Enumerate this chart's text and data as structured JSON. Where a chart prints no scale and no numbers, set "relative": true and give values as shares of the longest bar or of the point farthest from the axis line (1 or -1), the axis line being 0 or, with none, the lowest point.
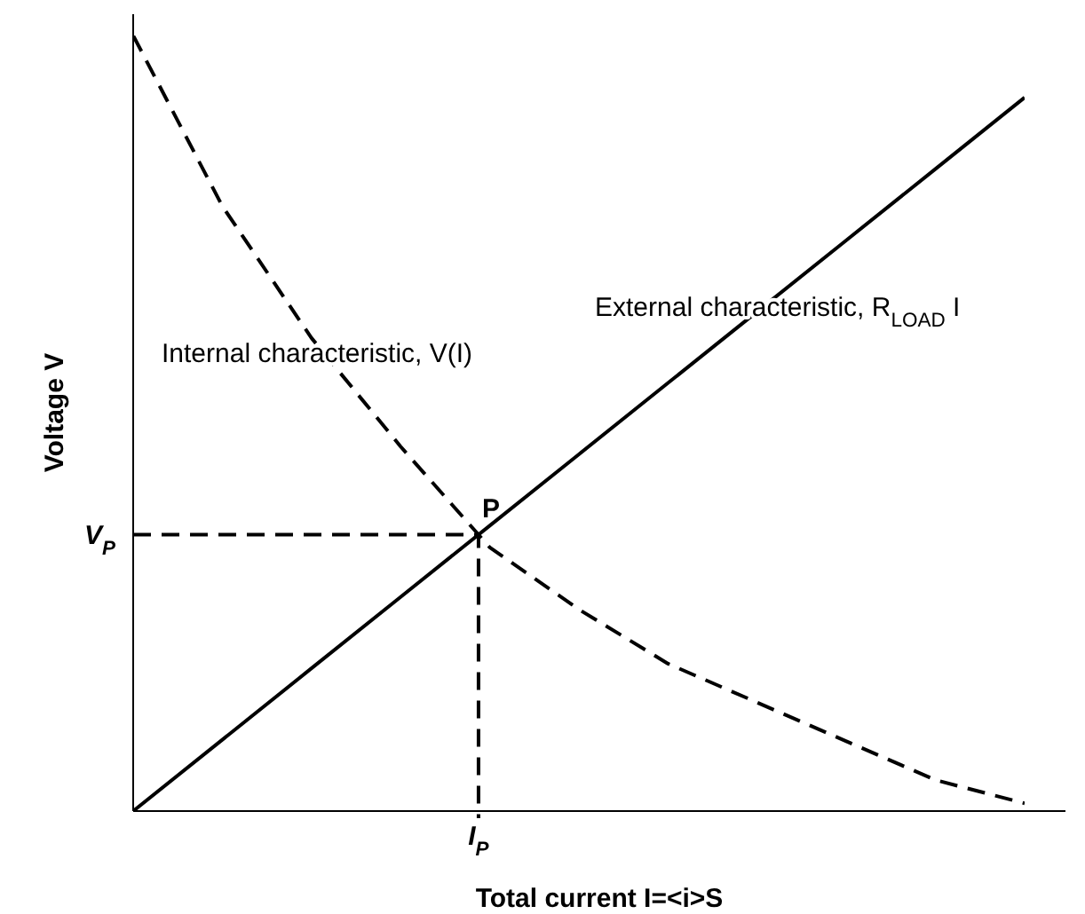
{
  "chart_data": {
    "type": "line",
    "relative": true,
    "xlabel": "Total current I=<i>S",
    "ylabel": "Voltage V",
    "categories": [
      null,
      null,
      null,
      null,
      null,
      null,
      null,
      null,
      null,
      null,
      null
    ],
    "series": [
      {
        "color": "#000000",
        "line_style": "dashed",
        "values": [
          1,
          0.78,
          0.61,
          0.47,
          0.34,
          0.26,
          0.19,
          0.14,
          0.09,
          0.04,
          0.01
        ]
      },
      {
        "color": "#000000",
        "line_style": "solid",
        "values": [
          0,
          0.092,
          0.184,
          0.276,
          0.368,
          0.46,
          0.552,
          0.644,
          0.736,
          0.828,
          0.92
        ]
      }
    ],
    "marker": "none",
    "annotations": [
      "Internal characteristic, V(I)",
      "External characteristic, R$_{LOAD}$ I",
      "P",
      "V$_{P}$",
      "I$_{P}$"
    ]
  }
}
